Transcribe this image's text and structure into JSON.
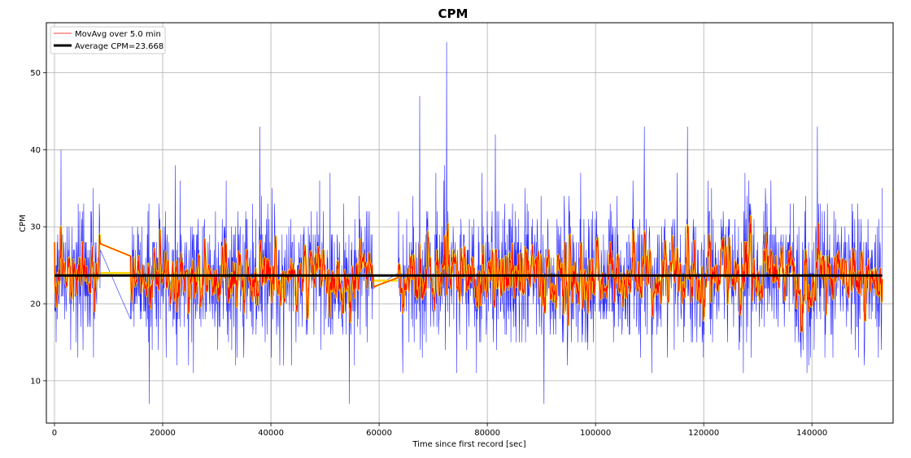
{
  "chart_data": {
    "type": "line",
    "title": "CPM",
    "xlabel": "Time since first record [sec]",
    "ylabel": "CPM",
    "xlim": [
      -1500,
      155000
    ],
    "ylim": [
      4.5,
      56.5
    ],
    "xticks": [
      0,
      20000,
      40000,
      60000,
      80000,
      100000,
      120000,
      140000
    ],
    "yticks": [
      10,
      20,
      30,
      40,
      50
    ],
    "xtick_labels": [
      "0",
      "20000",
      "40000",
      "60000",
      "80000",
      "100000",
      "120000",
      "140000"
    ],
    "ytick_labels": [
      "10",
      "20",
      "30",
      "40",
      "50"
    ],
    "grid": true,
    "legend_position": "upper-left",
    "legend": [
      {
        "label": "MovAvg over 5.0 min",
        "color": "#ff0000"
      },
      {
        "label": "Average CPM=23.668",
        "color": "#000000"
      }
    ],
    "series": [
      {
        "role": "raw",
        "color": "#0000ff",
        "x_range": [
          0,
          153000
        ],
        "mean": 23.668,
        "typical_range": [
          15,
          33
        ],
        "gap_x_ranges": [
          [
            8500,
            14000
          ],
          [
            59000,
            63500
          ]
        ],
        "peaks": [
          [
            72500,
            54
          ],
          [
            38000,
            43
          ],
          [
            109000,
            43
          ],
          [
            117000,
            43
          ],
          [
            141000,
            43
          ],
          [
            67500,
            47
          ],
          [
            81500,
            42
          ],
          [
            1200,
            40
          ],
          [
            17500,
            7
          ],
          [
            54500,
            7
          ],
          [
            90500,
            7
          ]
        ]
      },
      {
        "name": "MovAvg over 5.0 min",
        "role": "moving-average",
        "color": "#ff0000",
        "envelope_color": "#ffd700",
        "x_range": [
          0,
          153000
        ],
        "typical_range": [
          19,
          28
        ]
      },
      {
        "name": "Average CPM=23.668",
        "role": "average",
        "color": "#000000",
        "x": [
          0,
          153000
        ],
        "y": [
          23.668,
          23.668
        ]
      }
    ]
  }
}
